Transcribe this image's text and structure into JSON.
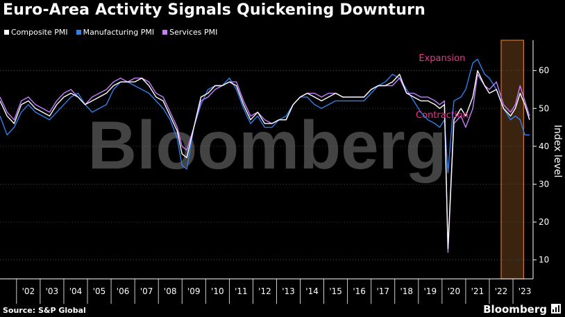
{
  "title": "Euro-Area Activity Signals Quickening Downturn",
  "source": "Source: S&P Global",
  "brand": "Bloomberg",
  "watermark": "Bloomberg",
  "colors": {
    "composite": "#ffffff",
    "manufacturing": "#2f80ed",
    "services": "#c77dff",
    "annotation": "#e8358f",
    "highlight_border": "#d4772a",
    "highlight_fill": "#3a2410"
  },
  "chart_data": {
    "type": "line",
    "ylabel": "Index level",
    "ylim": [
      5,
      68
    ],
    "xlim": [
      2001.3,
      2023.85
    ],
    "yticks": [
      10,
      20,
      30,
      40,
      50,
      60
    ],
    "xticks": [
      "'02",
      "'03",
      "'04",
      "'05",
      "'06",
      "'07",
      "'08",
      "'09",
      "'10",
      "'11",
      "'12",
      "'13",
      "'14",
      "'15",
      "'16",
      "'17",
      "'18",
      "'19",
      "'20",
      "'21",
      "'22",
      "'23"
    ],
    "grid": true,
    "legend_position": "top-left",
    "annotations": [
      {
        "text": "Expansion",
        "x": 2020.0,
        "y": 62.5
      },
      {
        "text": "Contraction",
        "x": 2020.0,
        "y": 47.5
      }
    ],
    "highlight_range": [
      2022.5,
      2023.45
    ],
    "series": [
      {
        "name": "Composite PMI",
        "key": "composite",
        "x": [
          2001.3,
          2001.6,
          2001.9,
          2002.2,
          2002.5,
          2002.8,
          2003.1,
          2003.4,
          2003.7,
          2004.0,
          2004.3,
          2004.6,
          2004.9,
          2005.2,
          2005.5,
          2005.8,
          2006.1,
          2006.4,
          2006.7,
          2007.0,
          2007.3,
          2007.6,
          2007.9,
          2008.2,
          2008.5,
          2008.8,
          2009.0,
          2009.2,
          2009.5,
          2009.8,
          2010.1,
          2010.4,
          2010.7,
          2011.0,
          2011.3,
          2011.6,
          2011.9,
          2012.2,
          2012.5,
          2012.8,
          2013.1,
          2013.4,
          2013.7,
          2014.0,
          2014.3,
          2014.6,
          2014.9,
          2015.2,
          2015.5,
          2015.8,
          2016.1,
          2016.4,
          2016.7,
          2017.0,
          2017.3,
          2017.6,
          2017.9,
          2018.2,
          2018.5,
          2018.8,
          2019.1,
          2019.4,
          2019.7,
          2019.9,
          2020.1,
          2020.25,
          2020.5,
          2020.8,
          2021.0,
          2021.3,
          2021.5,
          2021.8,
          2022.0,
          2022.3,
          2022.6,
          2022.9,
          2023.1,
          2023.3,
          2023.5,
          2023.7
        ],
        "values": [
          52,
          48,
          46,
          51,
          52,
          50,
          49,
          48,
          51,
          53,
          54,
          53,
          51,
          52,
          53,
          54,
          56,
          57,
          57,
          57,
          58,
          56,
          53,
          52,
          48,
          44,
          38,
          37,
          45,
          53,
          54,
          56,
          56,
          57,
          56,
          51,
          47,
          49,
          46,
          46,
          47,
          47,
          51,
          53,
          54,
          53,
          52,
          53,
          54,
          53,
          53,
          53,
          53,
          55,
          56,
          56,
          57,
          59,
          54,
          53,
          52,
          52,
          51,
          50,
          51,
          13,
          47,
          50,
          48,
          53,
          60,
          56,
          54,
          55,
          50,
          48,
          50,
          54,
          51,
          47
        ]
      },
      {
        "name": "Manufacturing PMI",
        "key": "manufacturing",
        "x": [
          2001.3,
          2001.6,
          2001.9,
          2002.2,
          2002.5,
          2002.8,
          2003.1,
          2003.4,
          2003.7,
          2004.0,
          2004.3,
          2004.6,
          2004.9,
          2005.2,
          2005.5,
          2005.8,
          2006.1,
          2006.4,
          2006.7,
          2007.0,
          2007.3,
          2007.6,
          2007.9,
          2008.2,
          2008.5,
          2008.8,
          2009.0,
          2009.2,
          2009.5,
          2009.8,
          2010.1,
          2010.4,
          2010.7,
          2011.0,
          2011.3,
          2011.6,
          2011.9,
          2012.2,
          2012.5,
          2012.8,
          2013.1,
          2013.4,
          2013.7,
          2014.0,
          2014.3,
          2014.6,
          2014.9,
          2015.2,
          2015.5,
          2015.8,
          2016.1,
          2016.4,
          2016.7,
          2017.0,
          2017.3,
          2017.6,
          2017.9,
          2018.2,
          2018.5,
          2018.8,
          2019.1,
          2019.4,
          2019.7,
          2019.9,
          2020.1,
          2020.25,
          2020.5,
          2020.8,
          2021.0,
          2021.3,
          2021.5,
          2021.8,
          2022.0,
          2022.3,
          2022.6,
          2022.9,
          2023.1,
          2023.3,
          2023.5,
          2023.7
        ],
        "values": [
          48,
          43,
          45,
          49,
          51,
          49,
          48,
          47,
          49,
          51,
          53,
          54,
          51,
          49,
          50,
          51,
          55,
          57,
          57,
          56,
          55,
          54,
          52,
          50,
          47,
          42,
          35,
          34,
          45,
          51,
          55,
          56,
          56,
          58,
          55,
          50,
          46,
          48,
          45,
          45,
          47,
          48,
          51,
          53,
          53,
          51,
          50,
          51,
          52,
          52,
          52,
          52,
          52,
          54,
          56,
          57,
          59,
          58,
          55,
          52,
          49,
          47,
          46,
          45,
          47,
          33,
          52,
          53,
          55,
          62,
          63,
          59,
          58,
          55,
          50,
          47,
          48,
          47,
          43,
          43
        ]
      },
      {
        "name": "Services PMI",
        "key": "services",
        "x": [
          2001.3,
          2001.6,
          2001.9,
          2002.2,
          2002.5,
          2002.8,
          2003.1,
          2003.4,
          2003.7,
          2004.0,
          2004.3,
          2004.6,
          2004.9,
          2005.2,
          2005.5,
          2005.8,
          2006.1,
          2006.4,
          2006.7,
          2007.0,
          2007.3,
          2007.6,
          2007.9,
          2008.2,
          2008.5,
          2008.8,
          2009.0,
          2009.2,
          2009.5,
          2009.8,
          2010.1,
          2010.4,
          2010.7,
          2011.0,
          2011.3,
          2011.6,
          2011.9,
          2012.2,
          2012.5,
          2012.8,
          2013.1,
          2013.4,
          2013.7,
          2014.0,
          2014.3,
          2014.6,
          2014.9,
          2015.2,
          2015.5,
          2015.8,
          2016.1,
          2016.4,
          2016.7,
          2017.0,
          2017.3,
          2017.6,
          2017.9,
          2018.2,
          2018.5,
          2018.8,
          2019.1,
          2019.4,
          2019.7,
          2019.9,
          2020.1,
          2020.25,
          2020.5,
          2020.8,
          2021.0,
          2021.3,
          2021.5,
          2021.8,
          2022.0,
          2022.3,
          2022.6,
          2022.9,
          2023.1,
          2023.3,
          2023.5,
          2023.7
        ],
        "values": [
          53,
          49,
          47,
          52,
          53,
          51,
          50,
          49,
          52,
          54,
          55,
          53,
          51,
          53,
          54,
          55,
          57,
          58,
          57,
          58,
          58,
          57,
          54,
          53,
          49,
          45,
          40,
          39,
          45,
          52,
          53,
          55,
          56,
          57,
          57,
          52,
          48,
          49,
          47,
          46,
          47,
          47,
          51,
          53,
          54,
          54,
          53,
          54,
          54,
          53,
          53,
          53,
          53,
          55,
          56,
          56,
          56,
          58,
          54,
          54,
          53,
          53,
          52,
          51,
          52,
          12,
          46,
          48,
          45,
          50,
          59,
          56,
          55,
          57,
          51,
          49,
          51,
          56,
          52,
          48
        ]
      }
    ]
  }
}
